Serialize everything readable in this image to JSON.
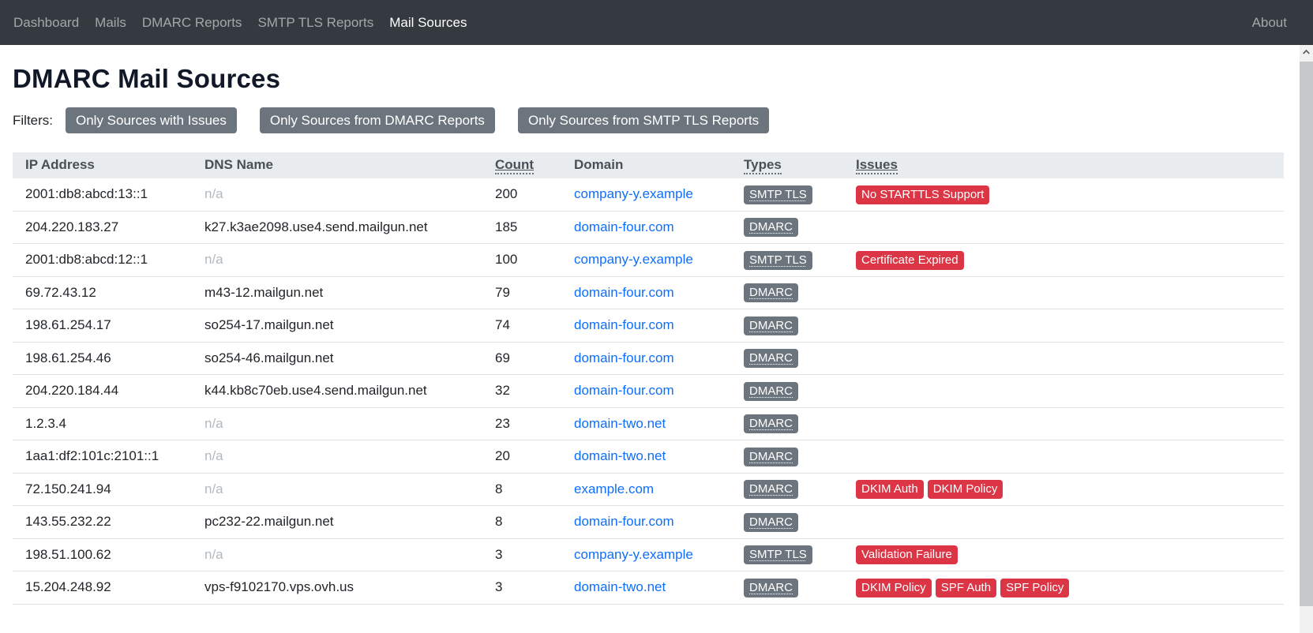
{
  "navbar": {
    "items": [
      {
        "label": "Dashboard",
        "active": false
      },
      {
        "label": "Mails",
        "active": false
      },
      {
        "label": "DMARC Reports",
        "active": false
      },
      {
        "label": "SMTP TLS Reports",
        "active": false
      },
      {
        "label": "Mail Sources",
        "active": true
      }
    ],
    "about_label": "About"
  },
  "page": {
    "title": "DMARC Mail Sources",
    "filters_label": "Filters:"
  },
  "filters": [
    "Only Sources with Issues",
    "Only Sources from DMARC Reports",
    "Only Sources from SMTP TLS Reports"
  ],
  "table": {
    "columns": [
      {
        "label": "IP Address",
        "sortable": false,
        "tooltip": false
      },
      {
        "label": "DNS Name",
        "sortable": false,
        "tooltip": false
      },
      {
        "label": "Count",
        "sortable": true,
        "tooltip": true
      },
      {
        "label": "Domain",
        "sortable": false,
        "tooltip": false
      },
      {
        "label": "Types",
        "sortable": false,
        "tooltip": true
      },
      {
        "label": "Issues",
        "sortable": true,
        "tooltip": true
      }
    ],
    "rows": [
      {
        "ip": "2001:db8:abcd:13::1",
        "dns": "n/a",
        "count": "200",
        "domain": "company-y.example",
        "types": [
          "SMTP TLS"
        ],
        "issues": [
          "No STARTTLS Support"
        ]
      },
      {
        "ip": "204.220.183.27",
        "dns": "k27.k3ae2098.use4.send.mailgun.net",
        "count": "185",
        "domain": "domain-four.com",
        "types": [
          "DMARC"
        ],
        "issues": []
      },
      {
        "ip": "2001:db8:abcd:12::1",
        "dns": "n/a",
        "count": "100",
        "domain": "company-y.example",
        "types": [
          "SMTP TLS"
        ],
        "issues": [
          "Certificate Expired"
        ]
      },
      {
        "ip": "69.72.43.12",
        "dns": "m43-12.mailgun.net",
        "count": "79",
        "domain": "domain-four.com",
        "types": [
          "DMARC"
        ],
        "issues": []
      },
      {
        "ip": "198.61.254.17",
        "dns": "so254-17.mailgun.net",
        "count": "74",
        "domain": "domain-four.com",
        "types": [
          "DMARC"
        ],
        "issues": []
      },
      {
        "ip": "198.61.254.46",
        "dns": "so254-46.mailgun.net",
        "count": "69",
        "domain": "domain-four.com",
        "types": [
          "DMARC"
        ],
        "issues": []
      },
      {
        "ip": "204.220.184.44",
        "dns": "k44.kb8c70eb.use4.send.mailgun.net",
        "count": "32",
        "domain": "domain-four.com",
        "types": [
          "DMARC"
        ],
        "issues": []
      },
      {
        "ip": "1.2.3.4",
        "dns": "n/a",
        "count": "23",
        "domain": "domain-two.net",
        "types": [
          "DMARC"
        ],
        "issues": []
      },
      {
        "ip": "1aa1:df2:101c:2101::1",
        "dns": "n/a",
        "count": "20",
        "domain": "domain-two.net",
        "types": [
          "DMARC"
        ],
        "issues": []
      },
      {
        "ip": "72.150.241.94",
        "dns": "n/a",
        "count": "8",
        "domain": "example.com",
        "types": [
          "DMARC"
        ],
        "issues": [
          "DKIM Auth",
          "DKIM Policy"
        ]
      },
      {
        "ip": "143.55.232.22",
        "dns": "pc232-22.mailgun.net",
        "count": "8",
        "domain": "domain-four.com",
        "types": [
          "DMARC"
        ],
        "issues": []
      },
      {
        "ip": "198.51.100.62",
        "dns": "n/a",
        "count": "3",
        "domain": "company-y.example",
        "types": [
          "SMTP TLS"
        ],
        "issues": [
          "Validation Failure"
        ]
      },
      {
        "ip": "15.204.248.92",
        "dns": "vps-f9102170.vps.ovh.us",
        "count": "3",
        "domain": "domain-two.net",
        "types": [
          "DMARC"
        ],
        "issues": [
          "DKIM Policy",
          "SPF Auth",
          "SPF Policy"
        ]
      }
    ],
    "na_text": "n/a"
  },
  "colors": {
    "navbar_bg": "#343a40",
    "link_blue": "#0d6efd",
    "badge_type_gray": "#6c757d",
    "badge_issue_red": "#dc3545",
    "table_header_bg": "#e9ecef",
    "filter_button_gray": "#6c757d"
  }
}
